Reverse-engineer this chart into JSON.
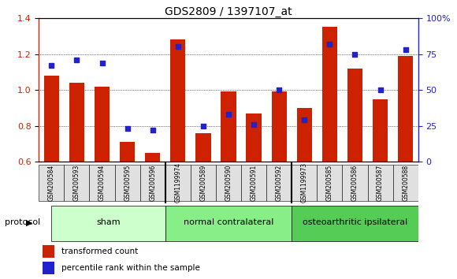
{
  "title": "GDS2809 / 1397107_at",
  "samples": [
    "GSM200584",
    "GSM200593",
    "GSM200594",
    "GSM200595",
    "GSM200596",
    "GSM1199974",
    "GSM200589",
    "GSM200590",
    "GSM200591",
    "GSM200592",
    "GSM1199973",
    "GSM200585",
    "GSM200586",
    "GSM200587",
    "GSM200588"
  ],
  "transformed_count": [
    1.08,
    1.04,
    1.02,
    0.71,
    0.65,
    1.28,
    0.76,
    0.99,
    0.87,
    0.99,
    0.9,
    1.35,
    1.12,
    0.95,
    1.19
  ],
  "percentile_rank": [
    67,
    71,
    69,
    23,
    22,
    80,
    25,
    33,
    26,
    50,
    29,
    82,
    75,
    50,
    78
  ],
  "ylim_left": [
    0.6,
    1.4
  ],
  "ylim_right": [
    0,
    100
  ],
  "yticks_left": [
    0.6,
    0.8,
    1.0,
    1.2,
    1.4
  ],
  "yticks_right": [
    0,
    25,
    50,
    75,
    100
  ],
  "ytick_labels_right": [
    "0",
    "25",
    "50",
    "75",
    "100%"
  ],
  "bar_color": "#cc2200",
  "dot_color": "#2222cc",
  "group_colors": [
    "#ccffcc",
    "#88ee88",
    "#55cc55"
  ],
  "groups": [
    {
      "label": "sham",
      "start": 0,
      "end": 4
    },
    {
      "label": "normal contralateral",
      "start": 5,
      "end": 9
    },
    {
      "label": "osteoarthritic ipsilateral",
      "start": 10,
      "end": 14
    }
  ],
  "protocol_label": "protocol",
  "legend_bar_label": "transformed count",
  "legend_dot_label": "percentile rank within the sample",
  "plot_bg_color": "#ffffff",
  "xtick_bg_color": "#e0e0e0"
}
